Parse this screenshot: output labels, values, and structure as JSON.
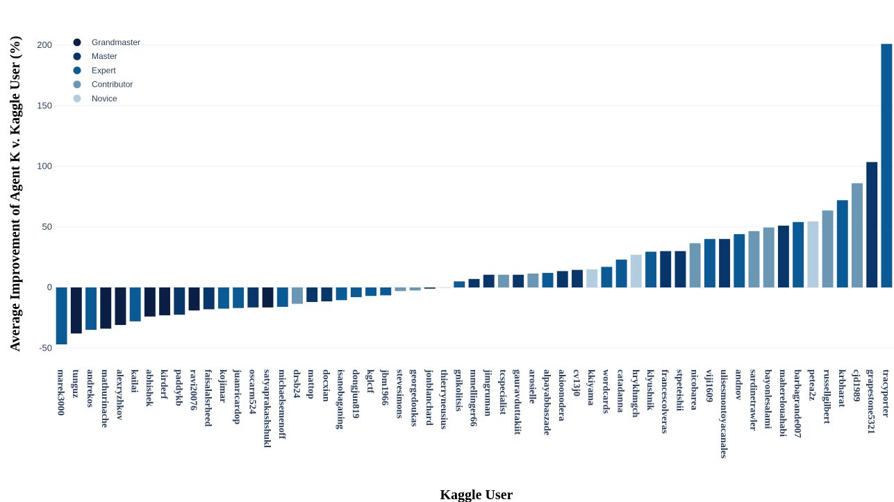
{
  "chart_data": {
    "type": "bar",
    "xlabel": "Kaggle User",
    "ylabel": "Average Improvement of Agent K v. Kaggle User (%)",
    "ylim": [
      -57,
      207
    ],
    "yticks": [
      -50,
      0,
      50,
      100,
      150,
      200
    ],
    "grid": true,
    "legend_position": "top-left",
    "legend": [
      {
        "name": "Grandmaster",
        "color": "#0b1f45"
      },
      {
        "name": "Master",
        "color": "#08366b"
      },
      {
        "name": "Expert",
        "color": "#0a5a96"
      },
      {
        "name": "Contributor",
        "color": "#6a97b3"
      },
      {
        "name": "Novice",
        "color": "#b3cde0"
      }
    ],
    "bars": [
      {
        "user": "marek3000",
        "value": -47,
        "tier": "Expert"
      },
      {
        "user": "tunguz",
        "value": -38,
        "tier": "Grandmaster"
      },
      {
        "user": "andrekos",
        "value": -35,
        "tier": "Expert"
      },
      {
        "user": "mathurinache",
        "value": -34,
        "tier": "Grandmaster"
      },
      {
        "user": "alexryzhkov",
        "value": -31,
        "tier": "Grandmaster"
      },
      {
        "user": "kailai",
        "value": -28,
        "tier": "Expert"
      },
      {
        "user": "abhishek",
        "value": -24,
        "tier": "Grandmaster"
      },
      {
        "user": "kirderf",
        "value": -23,
        "tier": "Grandmaster"
      },
      {
        "user": "paddykb",
        "value": -22.5,
        "tier": "Master"
      },
      {
        "user": "ravi20076",
        "value": -19,
        "tier": "Grandmaster"
      },
      {
        "user": "faisalalsrheed",
        "value": -18,
        "tier": "Master"
      },
      {
        "user": "kojimar",
        "value": -17.5,
        "tier": "Expert"
      },
      {
        "user": "juanricardop",
        "value": -17,
        "tier": "Expert"
      },
      {
        "user": "oscarm524",
        "value": -16.5,
        "tier": "Master"
      },
      {
        "user": "satyaprakashshukl",
        "value": -16.5,
        "tier": "Grandmaster"
      },
      {
        "user": "michaelsemenoff",
        "value": -16,
        "tier": "Expert"
      },
      {
        "user": "drsb24",
        "value": -13.5,
        "tier": "Contributor"
      },
      {
        "user": "mattop",
        "value": -12,
        "tier": "Master"
      },
      {
        "user": "docxian",
        "value": -11.5,
        "tier": "Master"
      },
      {
        "user": "isanobaganing",
        "value": -10.5,
        "tier": "Expert"
      },
      {
        "user": "dongjun819",
        "value": -8,
        "tier": "Expert"
      },
      {
        "user": "kglctf",
        "value": -7,
        "tier": "Expert"
      },
      {
        "user": "jbm1966",
        "value": -6.5,
        "tier": "Expert"
      },
      {
        "user": "stevesimons",
        "value": -3,
        "tier": "Contributor"
      },
      {
        "user": "georgedoukas",
        "value": -2.5,
        "tier": "Contributor"
      },
      {
        "user": "jonblanchard",
        "value": -1,
        "tier": "Master"
      },
      {
        "user": "thierryneusius",
        "value": -0.3,
        "tier": "Novice"
      },
      {
        "user": "gnikolitsis",
        "value": 5,
        "tier": "Expert"
      },
      {
        "user": "mmellinger66",
        "value": 7,
        "tier": "Master"
      },
      {
        "user": "jimgruman",
        "value": 10.5,
        "tier": "Master"
      },
      {
        "user": "tcspecialist",
        "value": 10.5,
        "tier": "Contributor"
      },
      {
        "user": "gauravduttakiit",
        "value": 10.5,
        "tier": "Master"
      },
      {
        "user": "arosielle",
        "value": 11.5,
        "tier": "Contributor"
      },
      {
        "user": "alpayabbaszade",
        "value": 12,
        "tier": "Expert"
      },
      {
        "user": "akioonodera",
        "value": 13.5,
        "tier": "Master"
      },
      {
        "user": "cv13j0",
        "value": 14.5,
        "tier": "Master"
      },
      {
        "user": "kkiyama",
        "value": 15,
        "tier": "Novice"
      },
      {
        "user": "wordcards",
        "value": 17,
        "tier": "Expert"
      },
      {
        "user": "catadanna",
        "value": 23,
        "tier": "Expert"
      },
      {
        "user": "hrykhmgch",
        "value": 27,
        "tier": "Novice"
      },
      {
        "user": "klyushnik",
        "value": 29.5,
        "tier": "Expert"
      },
      {
        "user": "francescolveras",
        "value": 30,
        "tier": "Master"
      },
      {
        "user": "stpeteishii",
        "value": 30,
        "tier": "Master"
      },
      {
        "user": "nicobarea",
        "value": 36.5,
        "tier": "Contributor"
      },
      {
        "user": "viji1609",
        "value": 40,
        "tier": "Expert"
      },
      {
        "user": "ulisesmontoyacanales",
        "value": 40,
        "tier": "Master"
      },
      {
        "user": "andnov",
        "value": 44,
        "tier": "Expert"
      },
      {
        "user": "sardinetrawler",
        "value": 46.5,
        "tier": "Contributor"
      },
      {
        "user": "bayonlesalami",
        "value": 49.5,
        "tier": "Contributor"
      },
      {
        "user": "maherelouahabi",
        "value": 51,
        "tier": "Master"
      },
      {
        "user": "barbagrande007",
        "value": 54,
        "tier": "Expert"
      },
      {
        "user": "petea2z",
        "value": 54.5,
        "tier": "Novice"
      },
      {
        "user": "russellgilbert",
        "value": 63.5,
        "tier": "Contributor"
      },
      {
        "user": "krbharat",
        "value": 72,
        "tier": "Expert"
      },
      {
        "user": "cjd1989",
        "value": 86,
        "tier": "Contributor"
      },
      {
        "user": "grapestone5321",
        "value": 103.5,
        "tier": "Master"
      },
      {
        "user": "tracyporter",
        "value": 201,
        "tier": "Expert"
      }
    ]
  }
}
